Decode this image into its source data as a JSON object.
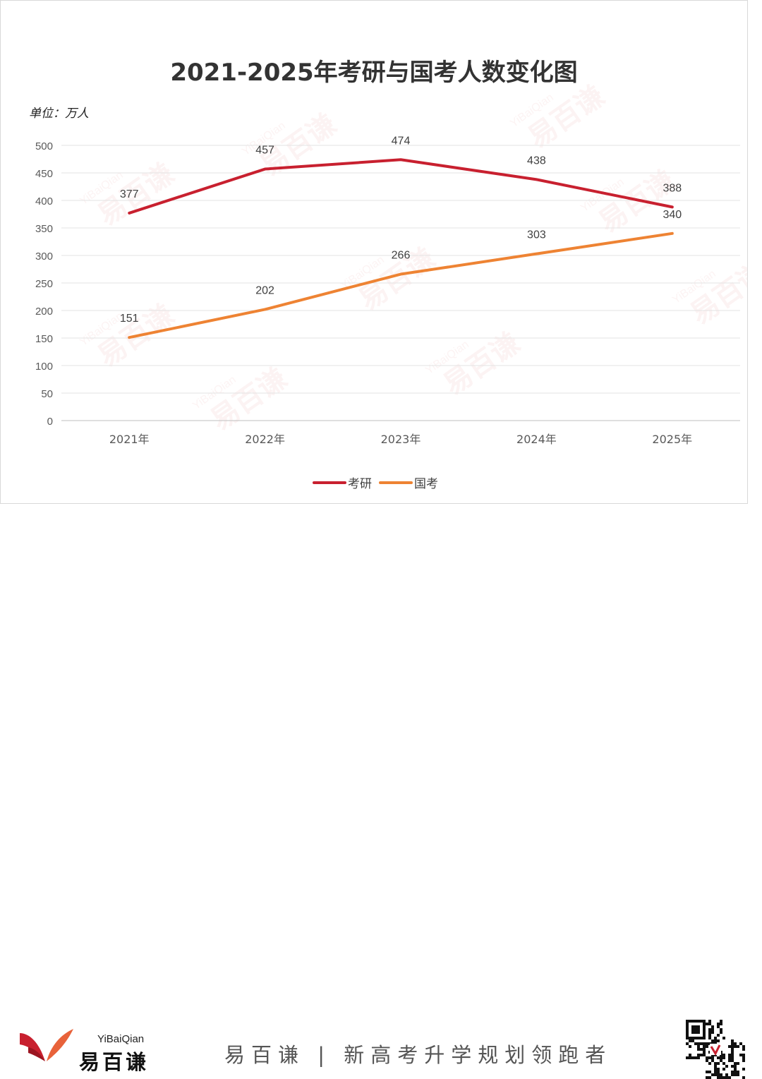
{
  "chart_data": {
    "type": "line",
    "title": "2021-2025年考研与国考人数变化图",
    "unit_label": "单位：万人",
    "categories": [
      "2021年",
      "2022年",
      "2023年",
      "2024年",
      "2025年"
    ],
    "series": [
      {
        "name": "考研",
        "values": [
          377,
          457,
          474,
          438,
          388
        ],
        "color": "#c8202f"
      },
      {
        "name": "国考",
        "values": [
          151,
          202,
          266,
          303,
          340
        ],
        "color": "#ee8333"
      }
    ],
    "ylim": [
      0,
      500
    ],
    "yticks": [
      0,
      50,
      100,
      150,
      200,
      250,
      300,
      350,
      400,
      450,
      500
    ],
    "grid": true,
    "legend": "bottom"
  },
  "watermark": {
    "brand_en": "YiBaiQian",
    "brand_cn": "易百谦"
  },
  "footer": {
    "brand_en": "YiBaiQian",
    "brand_cn": "易百谦",
    "slogan": "易百谦 | 新高考升学规划领跑者",
    "logo_colors": [
      "#c8202f",
      "#e8623a"
    ]
  }
}
